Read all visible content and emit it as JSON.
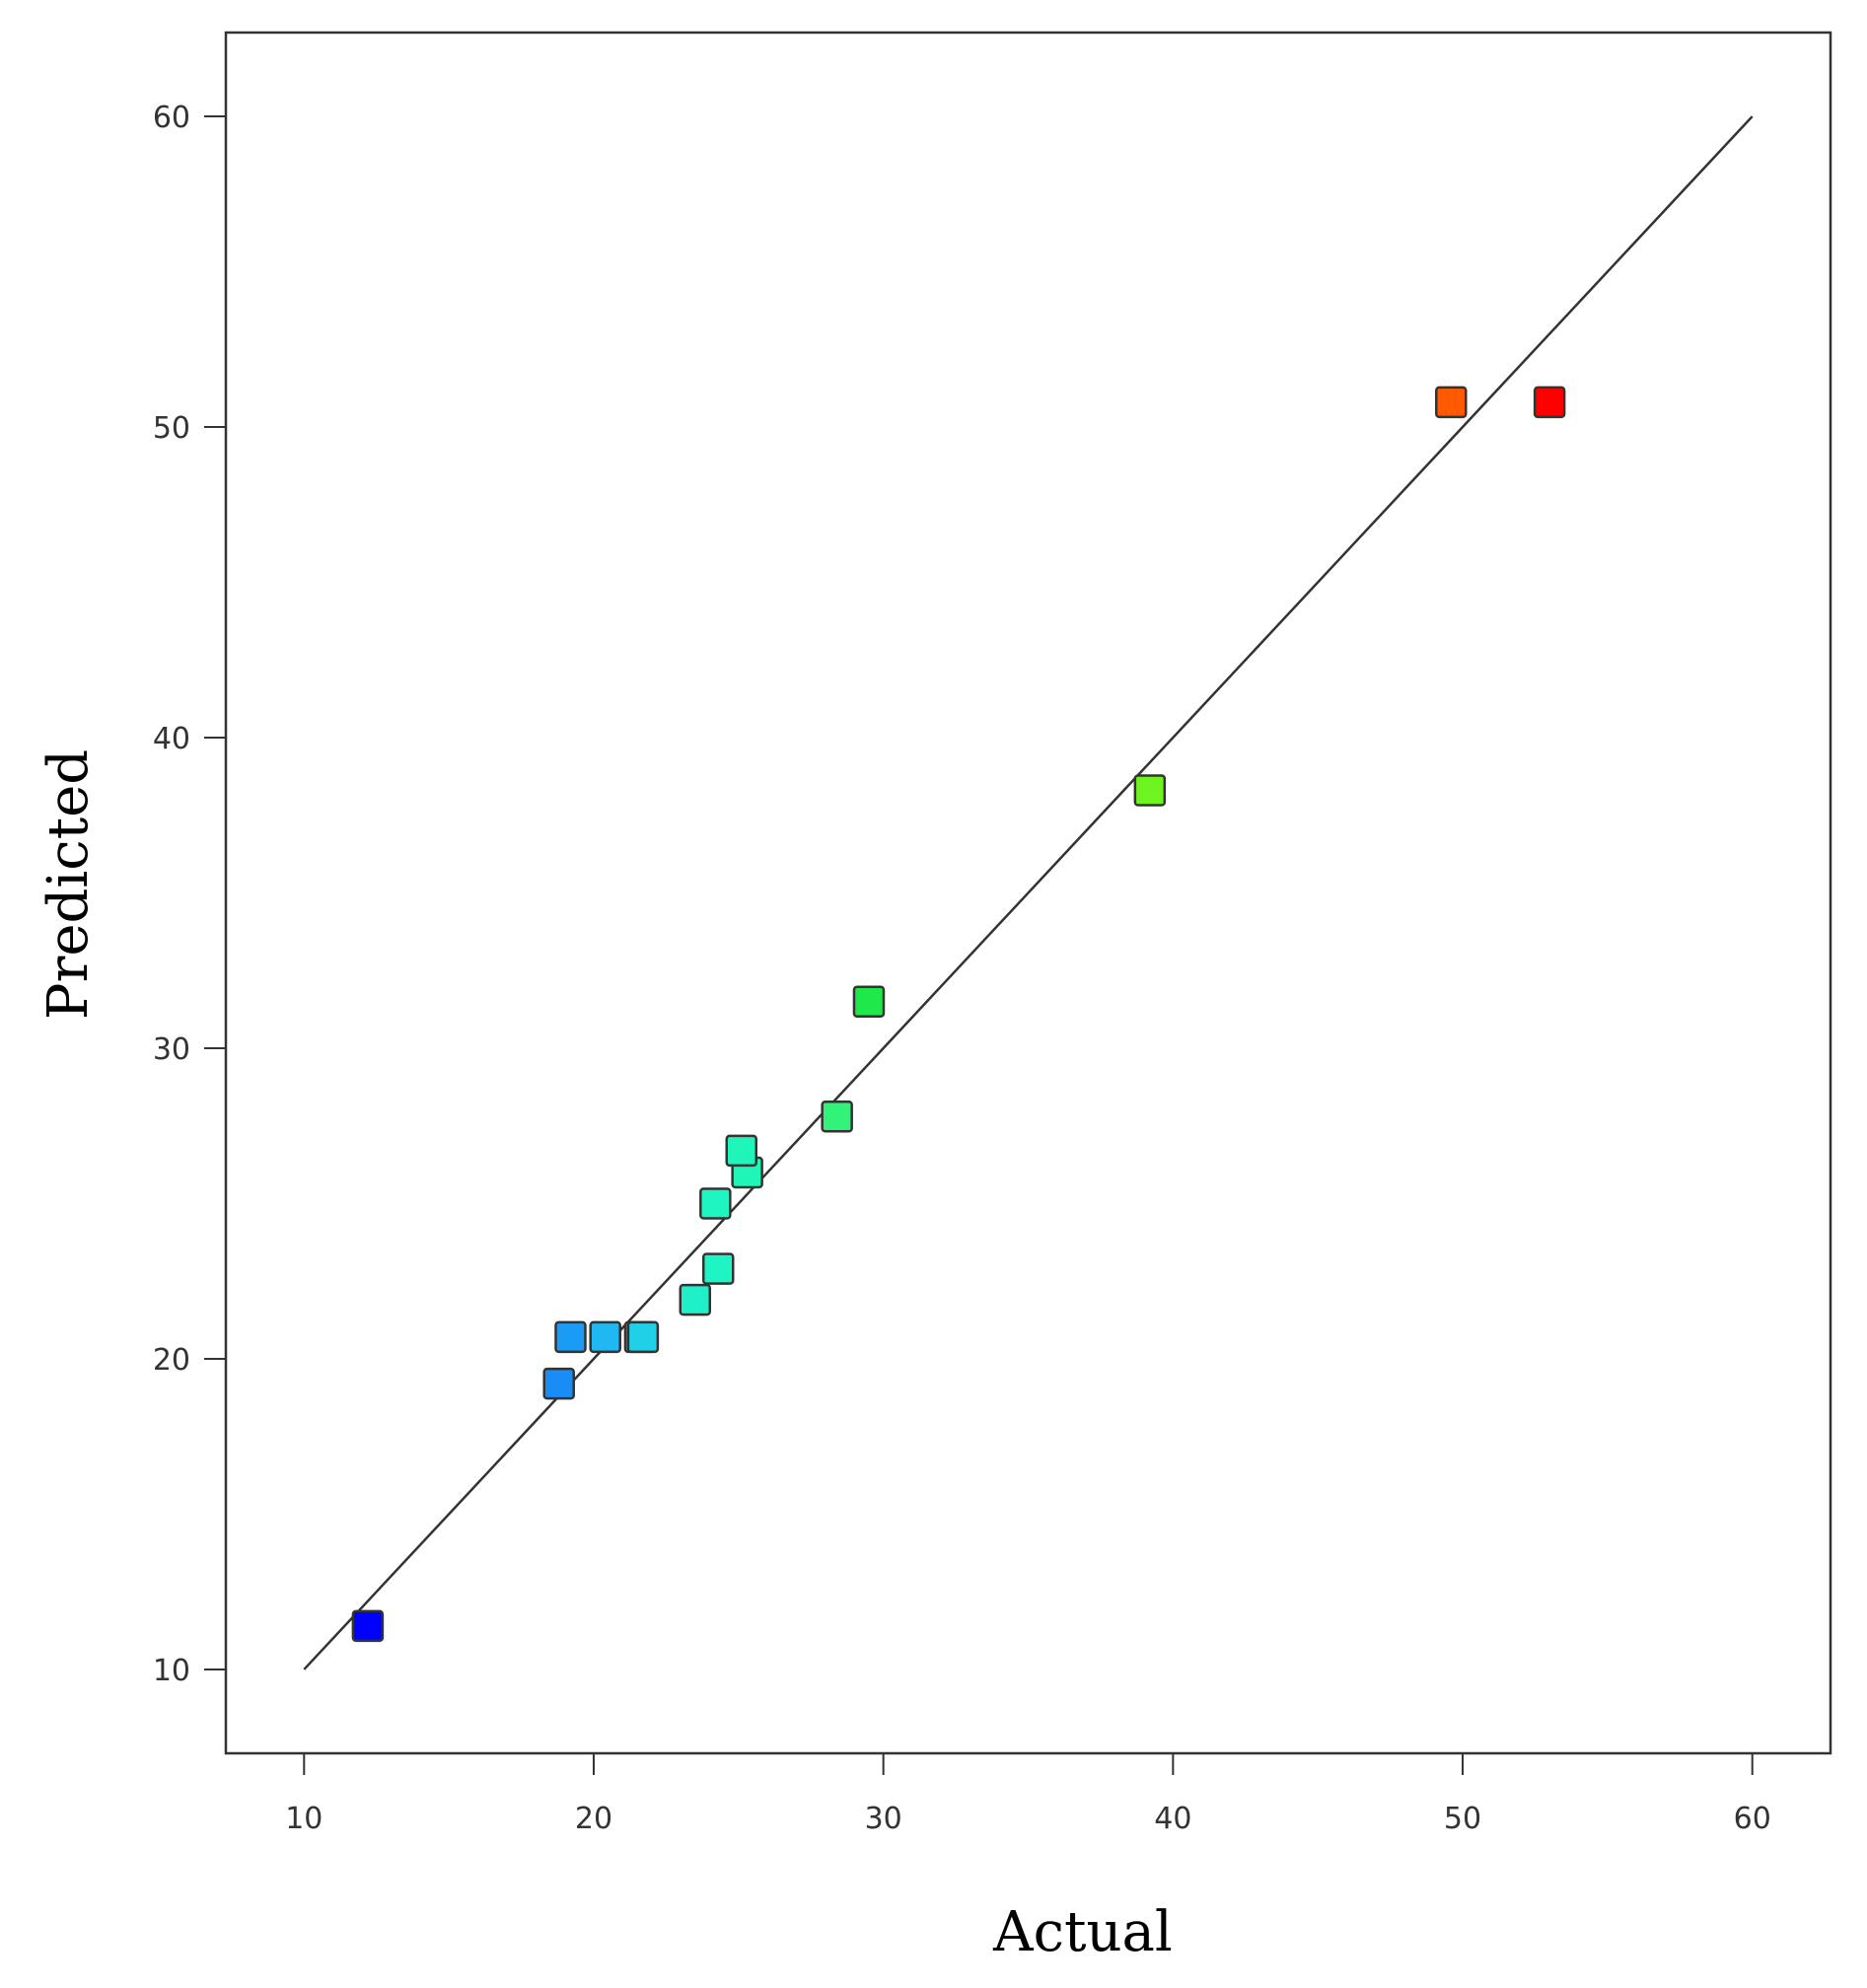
{
  "chart_data": {
    "type": "scatter",
    "title": "",
    "xlabel": "Actual",
    "ylabel": "Predicted",
    "xlim": [
      7.3,
      62.7
    ],
    "ylim": [
      7.3,
      62.7
    ],
    "xticks": [
      10,
      20,
      30,
      40,
      50,
      60
    ],
    "yticks": [
      10,
      20,
      30,
      40,
      50,
      60
    ],
    "grid": false,
    "reference_line": {
      "from": [
        10,
        10
      ],
      "to": [
        60,
        60
      ],
      "color": "#333333"
    },
    "points": [
      {
        "x": 12.2,
        "y": 11.4,
        "color": "#0000ff"
      },
      {
        "x": 18.8,
        "y": 19.2,
        "color": "#1a8cf5"
      },
      {
        "x": 19.2,
        "y": 20.7,
        "color": "#1a9bf5"
      },
      {
        "x": 20.4,
        "y": 20.7,
        "color": "#1fb8f3"
      },
      {
        "x": 21.6,
        "y": 20.7,
        "color": "#1fcde6"
      },
      {
        "x": 21.7,
        "y": 20.7,
        "color": "#1fd0e6"
      },
      {
        "x": 23.5,
        "y": 21.9,
        "color": "#1ff0c8"
      },
      {
        "x": 24.3,
        "y": 22.9,
        "color": "#1ff5c4"
      },
      {
        "x": 24.2,
        "y": 25.0,
        "color": "#1ff5c0"
      },
      {
        "x": 25.3,
        "y": 26.0,
        "color": "#1ff5b5"
      },
      {
        "x": 25.1,
        "y": 26.7,
        "color": "#1ff5b8"
      },
      {
        "x": 28.4,
        "y": 27.8,
        "color": "#33f27a"
      },
      {
        "x": 29.5,
        "y": 31.5,
        "color": "#1ee84a"
      },
      {
        "x": 39.2,
        "y": 38.3,
        "color": "#6ef51f"
      },
      {
        "x": 49.6,
        "y": 50.8,
        "color": "#ff5a00"
      },
      {
        "x": 53.0,
        "y": 50.8,
        "color": "#ff0000"
      }
    ]
  }
}
